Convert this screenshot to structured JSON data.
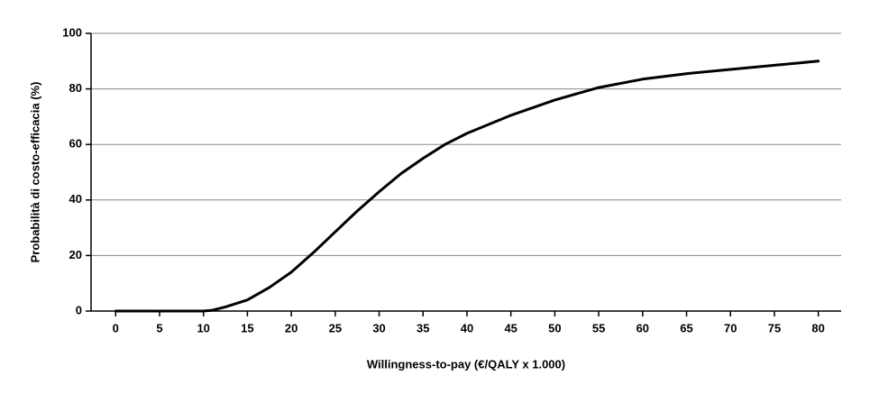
{
  "chart_data": {
    "type": "line",
    "x_label": "Willingness-to-pay (€/QALY x 1.000)",
    "y_label": "Probabilità di costo-efficacia (%)",
    "x": [
      0,
      5,
      10,
      11,
      12.5,
      15,
      17.5,
      20,
      22.5,
      25,
      27.5,
      30,
      32.5,
      35,
      37.5,
      40,
      45,
      50,
      55,
      60,
      65,
      70,
      75,
      80
    ],
    "values": [
      0,
      0,
      0,
      0.3,
      1.5,
      4,
      8.5,
      14,
      21,
      28.5,
      36,
      43,
      49.5,
      55,
      60,
      64,
      70.5,
      76,
      80.5,
      83.5,
      85.5,
      87,
      88.5,
      90
    ],
    "color": "#000000",
    "xlim": [
      -2.8,
      82.6
    ],
    "ylim": [
      0,
      100
    ],
    "xticks": [
      0,
      5,
      10,
      15,
      20,
      25,
      30,
      35,
      40,
      45,
      50,
      55,
      60,
      65,
      70,
      75,
      80
    ],
    "yticks": [
      0,
      20,
      40,
      60,
      80,
      100
    ],
    "grid": true
  }
}
